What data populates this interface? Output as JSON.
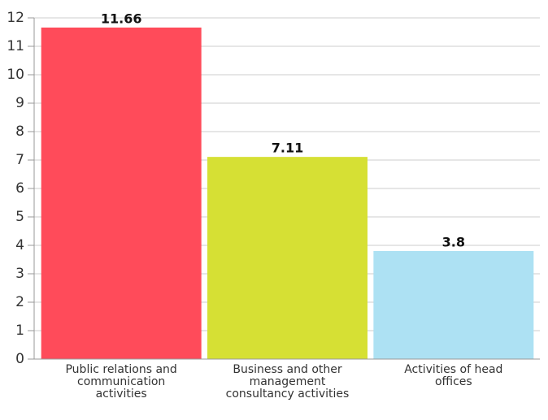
{
  "chart_data": {
    "type": "bar",
    "categories": [
      "Public relations and communication activities",
      "Business and other management consultancy activities",
      "Activities of head offices"
    ],
    "values": [
      11.66,
      7.11,
      3.8
    ],
    "colors": [
      "#ff4b5a",
      "#d6e034",
      "#ade1f3"
    ],
    "ylim": [
      0,
      12
    ],
    "yticks": [
      0,
      1,
      2,
      3,
      4,
      5,
      6,
      7,
      8,
      9,
      10,
      11,
      12
    ],
    "grid": true
  }
}
